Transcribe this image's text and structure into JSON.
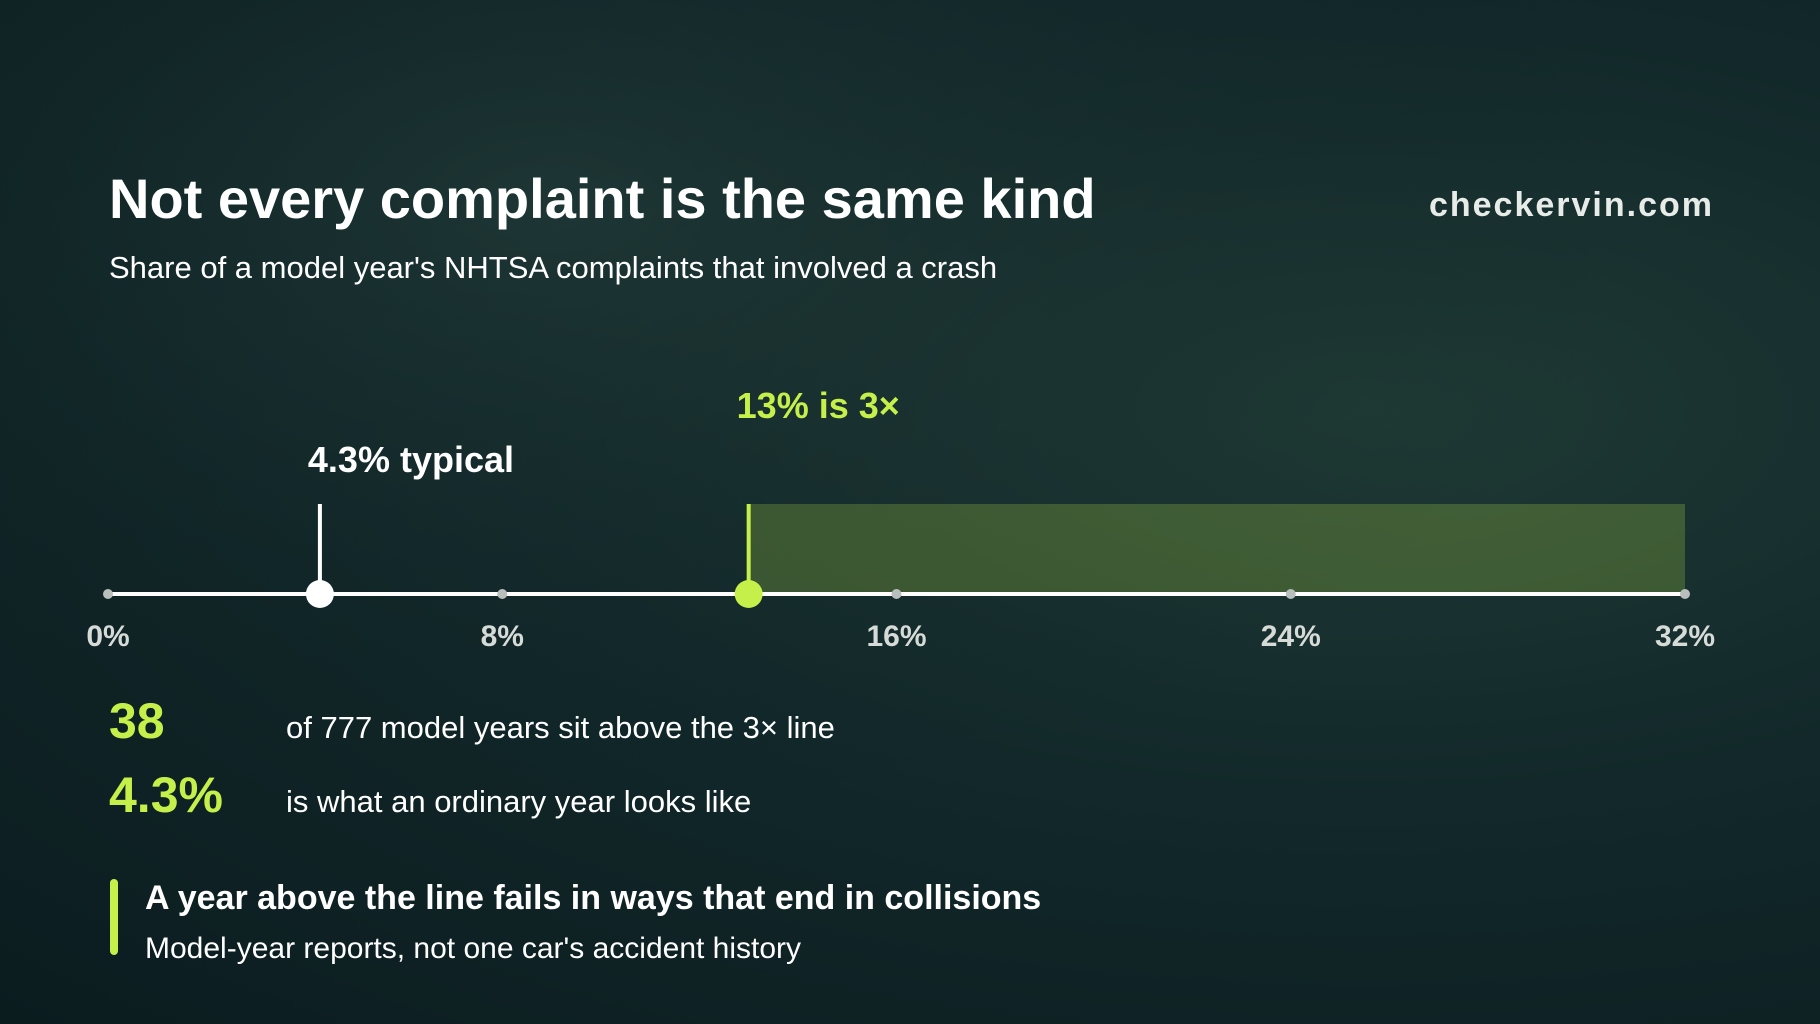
{
  "brand": "checkervin.com",
  "chart_data": {
    "type": "number-line",
    "title": "Not every complaint is the same kind",
    "subtitle": "Share of a model year's NHTSA complaints that involved a crash",
    "xlim": [
      0,
      32
    ],
    "xticks": [
      {
        "value": 0,
        "label": "0%"
      },
      {
        "value": 8,
        "label": "8%"
      },
      {
        "value": 16,
        "label": "16%"
      },
      {
        "value": 24,
        "label": "24%"
      },
      {
        "value": 32,
        "label": "32%"
      }
    ],
    "markers": [
      {
        "value": 4.3,
        "label": "4.3% typical",
        "color": "#ffffff"
      },
      {
        "value": 13,
        "label": "13% is 3×",
        "color": "#c5f04a",
        "shade_to_end": true
      }
    ]
  },
  "stats": [
    {
      "figure": "38",
      "text": "of 777 model years sit above the 3× line"
    },
    {
      "figure": "4.3%",
      "text": "is what an ordinary year looks like"
    }
  ],
  "callout": {
    "title": "A year above the line fails in ways that end in collisions",
    "note": "Model-year reports, not one car's accident history"
  }
}
